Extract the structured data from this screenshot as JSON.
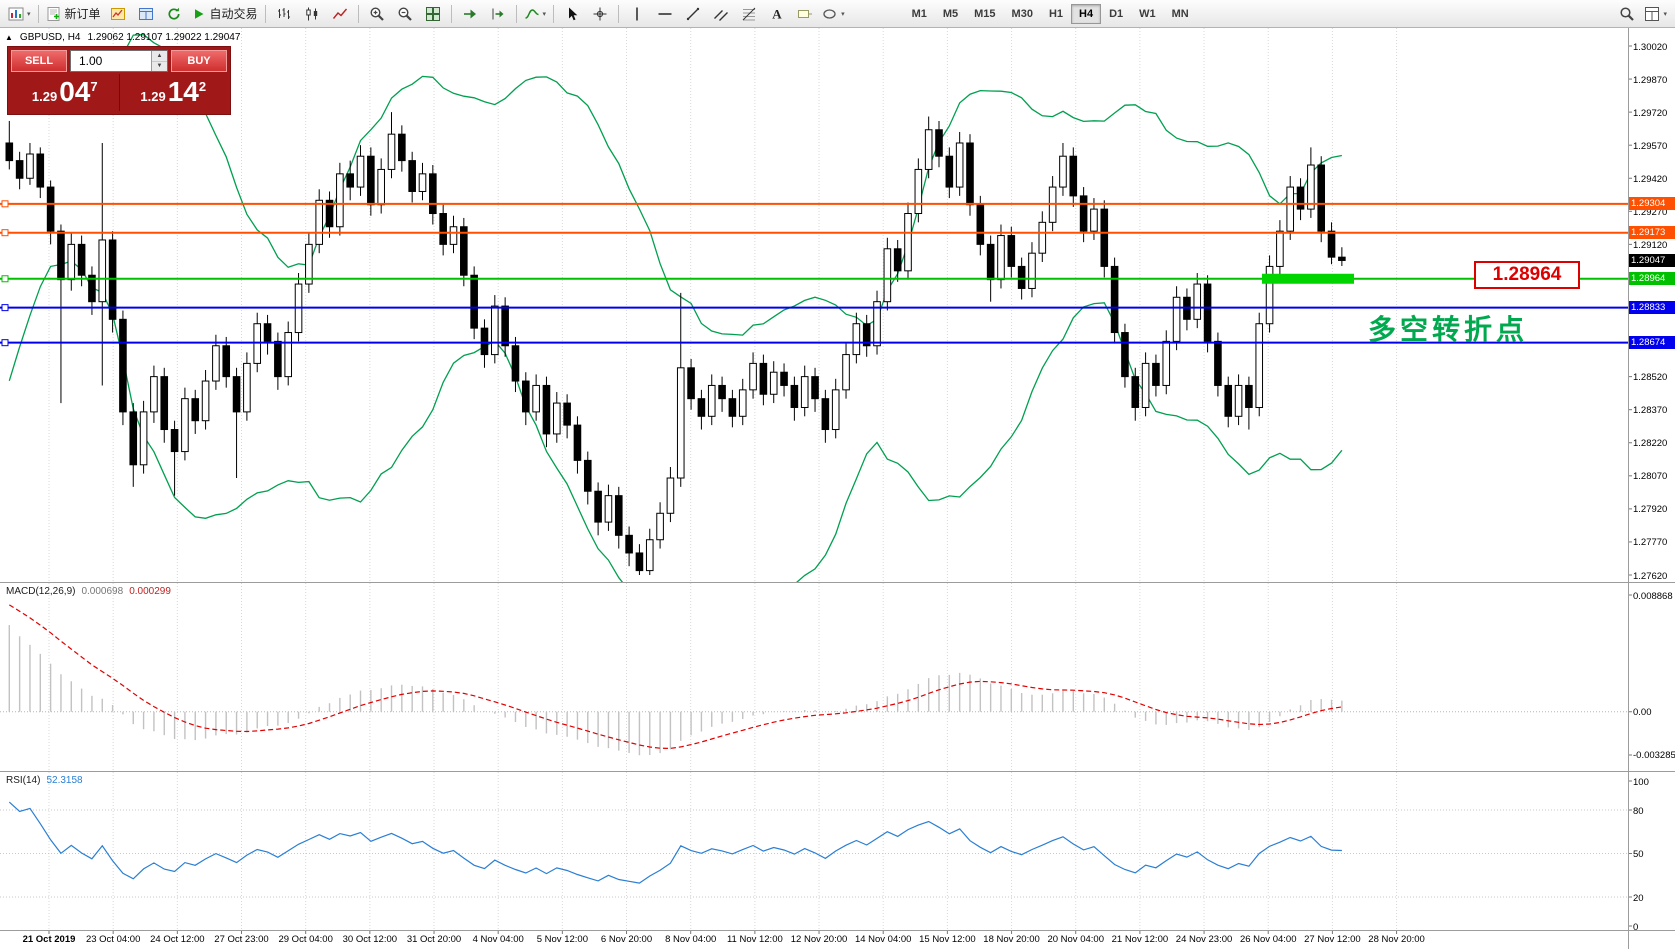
{
  "toolbar": {
    "buttons": [
      {
        "name": "new-chart",
        "caret": true
      },
      {
        "name": "sep"
      },
      {
        "name": "new-order",
        "label": "新订单"
      },
      {
        "name": "market-watch"
      },
      {
        "name": "data-window"
      },
      {
        "name": "refresh"
      },
      {
        "name": "autotrading",
        "label": "自动交易"
      },
      {
        "name": "sep"
      },
      {
        "name": "bar-chart"
      },
      {
        "name": "candlestick-chart"
      },
      {
        "name": "line-chart"
      },
      {
        "name": "sep"
      },
      {
        "name": "zoom-in"
      },
      {
        "name": "zoom-out"
      },
      {
        "name": "tile-windows"
      },
      {
        "name": "sep"
      },
      {
        "name": "auto-scroll"
      },
      {
        "name": "chart-shift"
      },
      {
        "name": "sep"
      },
      {
        "name": "indicators",
        "caret": true
      },
      {
        "name": "sep"
      },
      {
        "name": "cursor"
      },
      {
        "name": "crosshair"
      },
      {
        "name": "sep"
      },
      {
        "name": "vertical-line"
      },
      {
        "name": "horizontal-line"
      },
      {
        "name": "trendline"
      },
      {
        "name": "equidistant-channel"
      },
      {
        "name": "fibonacci"
      },
      {
        "name": "text"
      },
      {
        "name": "text-label"
      },
      {
        "name": "shapes",
        "caret": true
      }
    ],
    "right_buttons": [
      {
        "name": "search"
      },
      {
        "name": "layouts",
        "caret": true
      }
    ],
    "timeframes": [
      "M1",
      "M5",
      "M15",
      "M30",
      "H1",
      "H4",
      "D1",
      "W1",
      "MN"
    ],
    "active_timeframe": "H4"
  },
  "chart": {
    "header": {
      "symbol": "GBPUSD, H4",
      "ohlc": "1.29062 1.29107 1.29022 1.29047"
    },
    "trade_panel": {
      "sell_label": "SELL",
      "buy_label": "BUY",
      "lot_size": "1.00",
      "sell_price": {
        "prefix": "1.29",
        "main": "04",
        "sup": "7"
      },
      "buy_price": {
        "prefix": "1.29",
        "main": "14",
        "sup": "2"
      }
    },
    "annotations": {
      "price_callout": "1.28964",
      "note": "多空转折点"
    },
    "h_lines": [
      {
        "label": "1.29304",
        "price": 1.29304,
        "color": "#ff4f00"
      },
      {
        "label": "1.29173",
        "price": 1.29173,
        "color": "#ff4f00"
      },
      {
        "label": "1.28964",
        "price": 1.28964,
        "color": "#00c000",
        "highlight": true
      },
      {
        "label": "1.28833",
        "price": 1.28833,
        "color": "#0000ee"
      },
      {
        "label": "1.28674",
        "price": 1.28674,
        "color": "#0000ee"
      }
    ],
    "current_price": {
      "label": "1.29047",
      "price": 1.29047,
      "color": "#000000"
    },
    "price_axis_labels": [
      "1.30020",
      "1.29870",
      "1.29720",
      "1.29570",
      "1.29420",
      "1.29270",
      "1.29120",
      "1.28520",
      "1.28370",
      "1.28220",
      "1.28070",
      "1.27920",
      "1.27770",
      "1.27620"
    ],
    "time_axis_labels": [
      "21 Oct 2019",
      "23 Oct 04:00",
      "24 Oct 12:00",
      "27 Oct 23:00",
      "29 Oct 04:00",
      "30 Oct 12:00",
      "31 Oct 20:00",
      "4 Nov 04:00",
      "5 Nov 12:00",
      "6 Nov 20:00",
      "8 Nov 04:00",
      "11 Nov 12:00",
      "12 Nov 20:00",
      "14 Nov 04:00",
      "15 Nov 12:00",
      "18 Nov 20:00",
      "20 Nov 04:00",
      "21 Nov 12:00",
      "24 Nov 23:00",
      "26 Nov 04:00",
      "27 Nov 12:00",
      "28 Nov 20:00"
    ]
  },
  "macd": {
    "title": "MACD(12,26,9)",
    "value_main": "0.000698",
    "value_signal": "0.000299",
    "axis_labels": [
      "0.008868",
      "0.00",
      "-0.003285"
    ]
  },
  "rsi": {
    "title": "RSI(14)",
    "value": "52.3158",
    "axis_labels": [
      "100",
      "80",
      "50",
      "20",
      "0"
    ],
    "levels": [
      80,
      50,
      20
    ]
  },
  "colors": {
    "bull": "#ffffff",
    "bear": "#000000",
    "candle_border": "#000000",
    "bollinger": "#00a050",
    "grid": "#d8d8d8",
    "macd_histogram": "#c2c2c2",
    "macd_signal": "#e00000",
    "rsi_line": "#2a7fd4",
    "highlight_green": "#00d500"
  },
  "chart_data": {
    "type": "candlestick",
    "symbol": "GBPUSD",
    "timeframe": "H4",
    "price_axis": {
      "min": 1.2762,
      "max": 1.3002,
      "tick": 0.0015
    },
    "indicators": {
      "bollinger": {
        "period": 20,
        "deviation": 2
      },
      "macd": {
        "fast": 12,
        "slow": 26,
        "signal": 9
      },
      "rsi": {
        "period": 14
      }
    },
    "pre_closes": [
      1.283,
      1.2842,
      1.2855,
      1.2868,
      1.288,
      1.2893,
      1.2905,
      1.2915,
      1.2925,
      1.2934,
      1.2942,
      1.2948,
      1.2953,
      1.2957,
      1.296,
      1.2958,
      1.2962,
      1.2957,
      1.296,
      1.2956
    ],
    "candles": [
      [
        1.2958,
        1.2968,
        1.2946,
        1.295
      ],
      [
        1.295,
        1.2954,
        1.2937,
        1.2942
      ],
      [
        1.2942,
        1.2958,
        1.2939,
        1.2953
      ],
      [
        1.2953,
        1.2956,
        1.2933,
        1.2938
      ],
      [
        1.2938,
        1.2941,
        1.2912,
        1.2918
      ],
      [
        1.2918,
        1.2921,
        1.284,
        1.2896
      ],
      [
        1.2896,
        1.2917,
        1.2891,
        1.2912
      ],
      [
        1.2912,
        1.2916,
        1.2893,
        1.2898
      ],
      [
        1.2898,
        1.2902,
        1.288,
        1.2886
      ],
      [
        1.2886,
        1.2958,
        1.2848,
        1.2914
      ],
      [
        1.2914,
        1.2918,
        1.2872,
        1.2878
      ],
      [
        1.2878,
        1.2882,
        1.283,
        1.2836
      ],
      [
        1.2836,
        1.284,
        1.2802,
        1.2812
      ],
      [
        1.2812,
        1.2841,
        1.2808,
        1.2836
      ],
      [
        1.2836,
        1.2857,
        1.2831,
        1.2852
      ],
      [
        1.2852,
        1.2856,
        1.2822,
        1.2828
      ],
      [
        1.2828,
        1.2832,
        1.2798,
        1.2818
      ],
      [
        1.2818,
        1.2847,
        1.2814,
        1.2842
      ],
      [
        1.2842,
        1.2846,
        1.2826,
        1.2832
      ],
      [
        1.2832,
        1.2855,
        1.2828,
        1.285
      ],
      [
        1.285,
        1.2871,
        1.2846,
        1.2866
      ],
      [
        1.2866,
        1.287,
        1.2847,
        1.2852
      ],
      [
        1.2852,
        1.2856,
        1.2806,
        1.2836
      ],
      [
        1.2836,
        1.2863,
        1.2832,
        1.2858
      ],
      [
        1.2858,
        1.2881,
        1.2854,
        1.2876
      ],
      [
        1.2876,
        1.288,
        1.2862,
        1.2868
      ],
      [
        1.2868,
        1.2872,
        1.2846,
        1.2852
      ],
      [
        1.2852,
        1.2877,
        1.2848,
        1.2872
      ],
      [
        1.2872,
        1.2899,
        1.2868,
        1.2894
      ],
      [
        1.2894,
        1.2917,
        1.289,
        1.2912
      ],
      [
        1.2912,
        1.2937,
        1.2908,
        1.2932
      ],
      [
        1.2932,
        1.2936,
        1.2915,
        1.292
      ],
      [
        1.292,
        1.2949,
        1.2916,
        1.2944
      ],
      [
        1.2944,
        1.295,
        1.2932,
        1.2938
      ],
      [
        1.2938,
        1.2957,
        1.2934,
        1.2952
      ],
      [
        1.2952,
        1.2956,
        1.2925,
        1.293
      ],
      [
        1.293,
        1.2951,
        1.2926,
        1.2946
      ],
      [
        1.2946,
        1.2972,
        1.2942,
        1.2962
      ],
      [
        1.2962,
        1.2966,
        1.2945,
        1.295
      ],
      [
        1.295,
        1.2954,
        1.2931,
        1.2936
      ],
      [
        1.2936,
        1.2949,
        1.2932,
        1.2944
      ],
      [
        1.2944,
        1.2948,
        1.2921,
        1.2926
      ],
      [
        1.2926,
        1.293,
        1.2907,
        1.2912
      ],
      [
        1.2912,
        1.2925,
        1.2908,
        1.292
      ],
      [
        1.292,
        1.2924,
        1.2893,
        1.2898
      ],
      [
        1.2898,
        1.2902,
        1.2869,
        1.2874
      ],
      [
        1.2874,
        1.2878,
        1.2856,
        1.2862
      ],
      [
        1.2862,
        1.2889,
        1.2858,
        1.2884
      ],
      [
        1.2884,
        1.2888,
        1.2861,
        1.2866
      ],
      [
        1.2866,
        1.287,
        1.2845,
        1.285
      ],
      [
        1.285,
        1.2854,
        1.283,
        1.2836
      ],
      [
        1.2836,
        1.2853,
        1.2832,
        1.2848
      ],
      [
        1.2848,
        1.2852,
        1.282,
        1.2826
      ],
      [
        1.2826,
        1.2845,
        1.2822,
        1.284
      ],
      [
        1.284,
        1.2844,
        1.2824,
        1.283
      ],
      [
        1.283,
        1.2834,
        1.2808,
        1.2814
      ],
      [
        1.2814,
        1.2818,
        1.2794,
        1.28
      ],
      [
        1.28,
        1.2804,
        1.278,
        1.2786
      ],
      [
        1.2786,
        1.2803,
        1.2782,
        1.2798
      ],
      [
        1.2798,
        1.2802,
        1.2774,
        1.278
      ],
      [
        1.278,
        1.2784,
        1.2766,
        1.2772
      ],
      [
        1.2772,
        1.2776,
        1.2762,
        1.2764
      ],
      [
        1.2764,
        1.2783,
        1.2762,
        1.2778
      ],
      [
        1.2778,
        1.2795,
        1.2774,
        1.279
      ],
      [
        1.279,
        1.2811,
        1.2786,
        1.2806
      ],
      [
        1.2806,
        1.289,
        1.2802,
        1.2856
      ],
      [
        1.2856,
        1.286,
        1.2837,
        1.2842
      ],
      [
        1.2842,
        1.2846,
        1.2828,
        1.2834
      ],
      [
        1.2834,
        1.2853,
        1.283,
        1.2848
      ],
      [
        1.2848,
        1.2852,
        1.2836,
        1.2842
      ],
      [
        1.2842,
        1.2846,
        1.2829,
        1.2834
      ],
      [
        1.2834,
        1.2851,
        1.283,
        1.2846
      ],
      [
        1.2846,
        1.2863,
        1.2842,
        1.2858
      ],
      [
        1.2858,
        1.2862,
        1.2839,
        1.2844
      ],
      [
        1.2844,
        1.2859,
        1.284,
        1.2854
      ],
      [
        1.2854,
        1.2858,
        1.2843,
        1.2848
      ],
      [
        1.2848,
        1.2852,
        1.2832,
        1.2838
      ],
      [
        1.2838,
        1.2857,
        1.2834,
        1.2852
      ],
      [
        1.2852,
        1.2856,
        1.2836,
        1.2842
      ],
      [
        1.2842,
        1.2846,
        1.2822,
        1.2828
      ],
      [
        1.2828,
        1.2851,
        1.2824,
        1.2846
      ],
      [
        1.2846,
        1.2867,
        1.2842,
        1.2862
      ],
      [
        1.2862,
        1.2881,
        1.2858,
        1.2876
      ],
      [
        1.2876,
        1.288,
        1.2861,
        1.2866
      ],
      [
        1.2866,
        1.2891,
        1.2862,
        1.2886
      ],
      [
        1.2886,
        1.2915,
        1.2882,
        1.291
      ],
      [
        1.291,
        1.2914,
        1.2895,
        1.29
      ],
      [
        1.29,
        1.2931,
        1.2896,
        1.2926
      ],
      [
        1.2926,
        1.2951,
        1.2922,
        1.2946
      ],
      [
        1.2946,
        1.297,
        1.2942,
        1.2964
      ],
      [
        1.2964,
        1.2968,
        1.2947,
        1.2952
      ],
      [
        1.2952,
        1.2956,
        1.2933,
        1.2938
      ],
      [
        1.2938,
        1.2963,
        1.2934,
        1.2958
      ],
      [
        1.2958,
        1.2962,
        1.2925,
        1.293
      ],
      [
        1.293,
        1.2934,
        1.2907,
        1.2912
      ],
      [
        1.2912,
        1.2916,
        1.2886,
        1.2896
      ],
      [
        1.2896,
        1.2921,
        1.2892,
        1.2916
      ],
      [
        1.2916,
        1.292,
        1.2897,
        1.2902
      ],
      [
        1.2902,
        1.2906,
        1.2887,
        1.2892
      ],
      [
        1.2892,
        1.2913,
        1.2888,
        1.2908
      ],
      [
        1.2908,
        1.2927,
        1.2904,
        1.2922
      ],
      [
        1.2922,
        1.2943,
        1.2918,
        1.2938
      ],
      [
        1.2938,
        1.2958,
        1.2934,
        1.2952
      ],
      [
        1.2952,
        1.2956,
        1.2929,
        1.2934
      ],
      [
        1.2934,
        1.2938,
        1.2913,
        1.2918
      ],
      [
        1.2918,
        1.2933,
        1.2914,
        1.2928
      ],
      [
        1.2928,
        1.2932,
        1.2897,
        1.2902
      ],
      [
        1.2902,
        1.2906,
        1.2867,
        1.2872
      ],
      [
        1.2872,
        1.2876,
        1.2847,
        1.2852
      ],
      [
        1.2852,
        1.2856,
        1.2832,
        1.2838
      ],
      [
        1.2838,
        1.2863,
        1.2834,
        1.2858
      ],
      [
        1.2858,
        1.2862,
        1.2843,
        1.2848
      ],
      [
        1.2848,
        1.2873,
        1.2844,
        1.2868
      ],
      [
        1.2868,
        1.2893,
        1.2864,
        1.2888
      ],
      [
        1.2888,
        1.2892,
        1.2873,
        1.2878
      ],
      [
        1.2878,
        1.2899,
        1.2874,
        1.2894
      ],
      [
        1.2894,
        1.2898,
        1.2863,
        1.2868
      ],
      [
        1.2868,
        1.2872,
        1.2843,
        1.2848
      ],
      [
        1.2848,
        1.2852,
        1.2829,
        1.2834
      ],
      [
        1.2834,
        1.2853,
        1.283,
        1.2848
      ],
      [
        1.2848,
        1.2852,
        1.2828,
        1.2838
      ],
      [
        1.2838,
        1.2881,
        1.2834,
        1.2876
      ],
      [
        1.2876,
        1.2907,
        1.2872,
        1.2902
      ],
      [
        1.2902,
        1.2923,
        1.2898,
        1.2918
      ],
      [
        1.2918,
        1.2943,
        1.2914,
        1.2938
      ],
      [
        1.2938,
        1.2942,
        1.2923,
        1.2928
      ],
      [
        1.2928,
        1.2956,
        1.2924,
        1.2948
      ],
      [
        1.2948,
        1.2952,
        1.2913,
        1.2918
      ],
      [
        1.2918,
        1.2922,
        1.2903,
        1.29062
      ],
      [
        1.29062,
        1.29107,
        1.29022,
        1.29047
      ]
    ]
  }
}
